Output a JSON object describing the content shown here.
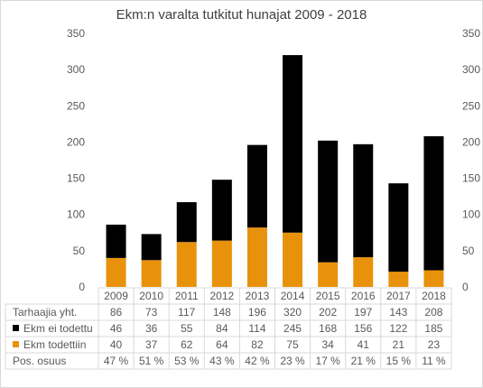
{
  "chart_data": {
    "type": "bar",
    "stacked": true,
    "title": "Ekm:n varalta tutkitut hunajat 2009 - 2018",
    "categories": [
      "2009",
      "2010",
      "2011",
      "2012",
      "2013",
      "2014",
      "2015",
      "2016",
      "2017",
      "2018"
    ],
    "ylim": [
      0,
      350
    ],
    "yticks": [
      0,
      50,
      100,
      150,
      200,
      250,
      300,
      350
    ],
    "secondary_axis_ticks": [
      0,
      50,
      100,
      150,
      200,
      250,
      300,
      350
    ],
    "grid": false,
    "series": [
      {
        "name": "Ekm todettiin",
        "color": "#e8920c",
        "values": [
          40,
          37,
          62,
          64,
          82,
          75,
          34,
          41,
          21,
          23
        ]
      },
      {
        "name": "Ekm ei todettu",
        "color": "#000000",
        "values": [
          46,
          36,
          55,
          84,
          114,
          245,
          168,
          156,
          122,
          185
        ]
      }
    ],
    "table": {
      "rows": [
        {
          "label": "Tarhaajia yht.",
          "marker": "",
          "values": [
            "86",
            "73",
            "117",
            "148",
            "196",
            "320",
            "202",
            "197",
            "143",
            "208"
          ]
        },
        {
          "label": "Ekm ei todettu",
          "marker": "#000000",
          "values": [
            "46",
            "36",
            "55",
            "84",
            "114",
            "245",
            "168",
            "156",
            "122",
            "185"
          ]
        },
        {
          "label": "Ekm todettiin",
          "marker": "#e8920c",
          "values": [
            "40",
            "37",
            "62",
            "64",
            "82",
            "75",
            "34",
            "41",
            "21",
            "23"
          ]
        },
        {
          "label": "Pos. osuus",
          "marker": "",
          "values": [
            "47 %",
            "51 %",
            "53 %",
            "43 %",
            "42 %",
            "23 %",
            "17 %",
            "21 %",
            "15 %",
            "11 %"
          ]
        }
      ]
    }
  }
}
